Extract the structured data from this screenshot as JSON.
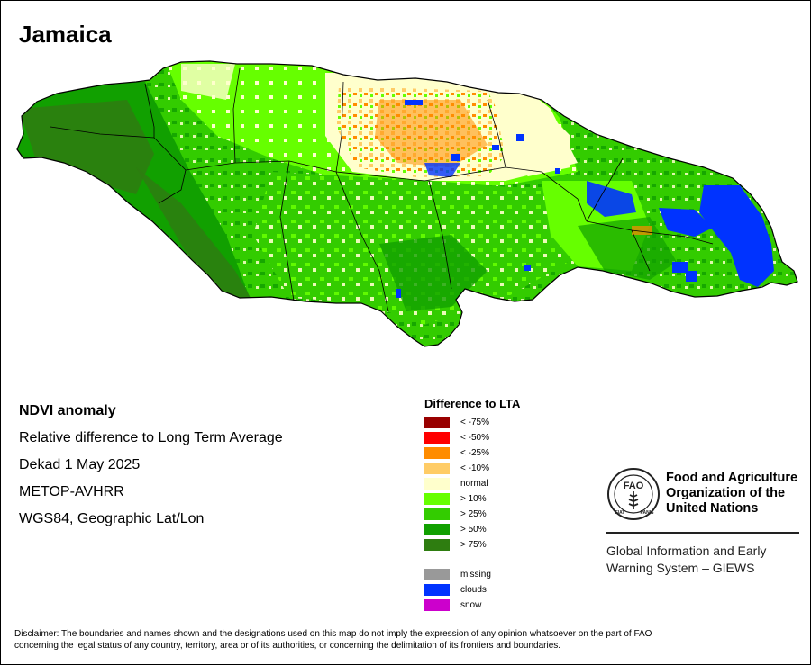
{
  "map": {
    "title": "Jamaica"
  },
  "info": {
    "heading": "NDVI anomaly",
    "description": "Relative difference to Long Term Average",
    "period": "Dekad 1 May 2025",
    "sensor": "METOP-AVHRR",
    "projection": "WGS84, Geographic Lat/Lon"
  },
  "legend": {
    "title": "Difference to LTA",
    "classes": [
      {
        "label": "< -75%",
        "color": "#990000"
      },
      {
        "label": "< -50%",
        "color": "#ff0000"
      },
      {
        "label": "< -25%",
        "color": "#ff8c00"
      },
      {
        "label": "< -10%",
        "color": "#ffcc66"
      },
      {
        "label": "normal",
        "color": "#ffffcc"
      },
      {
        "label": "> 10%",
        "color": "#66ff00"
      },
      {
        "label": "> 25%",
        "color": "#33cc00"
      },
      {
        "label": "> 50%",
        "color": "#11a000"
      },
      {
        "label": "> 75%",
        "color": "#2e7d10"
      }
    ],
    "extra": [
      {
        "label": "missing",
        "color": "#999999"
      },
      {
        "label": "clouds",
        "color": "#0033ff"
      },
      {
        "label": "snow",
        "color": "#cc00cc"
      }
    ]
  },
  "fao": {
    "org_line1": "Food and Agriculture",
    "org_line2": "Organization of the",
    "org_line3": "United Nations",
    "logo_text": "FAO",
    "motto_left": "FIAT",
    "motto_right": "PANIS",
    "giews_line1": "Global Information and Early",
    "giews_line2": "Warning System – GIEWS"
  },
  "disclaimer": {
    "line1": "Disclaimer: The boundaries and names shown and the designations used on this map do not imply the expression of any opinion whatsoever on the part of FAO",
    "line2": "concerning the legal status of any country, territory, area or of its authorities, or concerning the delimitation of its frontiers and boundaries."
  }
}
